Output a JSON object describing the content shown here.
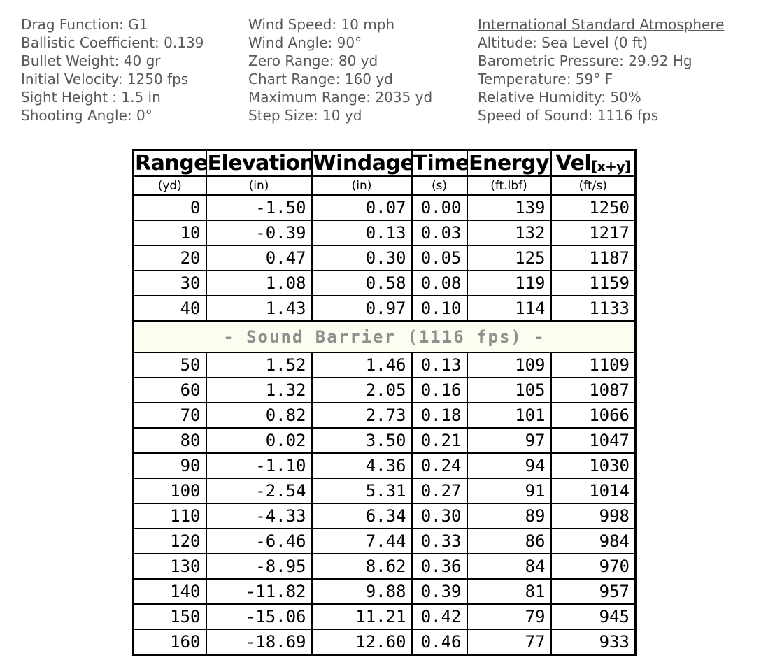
{
  "info": {
    "ballistics": [
      "Drag Function: G1",
      "Ballistic Coefficient: 0.139",
      "Bullet Weight: 40 gr",
      "Initial Velocity: 1250 fps",
      "Sight Height : 1.5 in",
      "Shooting Angle: 0°"
    ],
    "conditions": [
      "Wind Speed: 10 mph",
      "Wind Angle: 90°",
      "Zero Range: 80 yd",
      "Chart Range: 160 yd",
      "Maximum Range: 2035 yd",
      "Step Size: 10 yd"
    ],
    "atmosphere": {
      "title": "International Standard Atmosphere",
      "lines": [
        "Altitude: Sea Level (0 ft)",
        "Barometric Pressure: 29.92 Hg",
        "Temperature: 59° F",
        "Relative Humidity: 50%",
        "Speed of Sound: 1116 fps"
      ]
    }
  },
  "table": {
    "headers": [
      "Range",
      "Elevation",
      "Windage",
      "Time",
      "Energy"
    ],
    "vel_header": {
      "main": "Vel",
      "sub": "[x+y]"
    },
    "units": [
      "(yd)",
      "(in)",
      "(in)",
      "(s)",
      "(ft.lbf)",
      "(ft/s)"
    ],
    "column_keys": [
      "range",
      "elevation",
      "windage",
      "time",
      "energy",
      "velocity"
    ],
    "rows_before_barrier": [
      [
        "0",
        "-1.50",
        "0.07",
        "0.00",
        "139",
        "1250"
      ],
      [
        "10",
        "-0.39",
        "0.13",
        "0.03",
        "132",
        "1217"
      ],
      [
        "20",
        "0.47",
        "0.30",
        "0.05",
        "125",
        "1187"
      ],
      [
        "30",
        "1.08",
        "0.58",
        "0.08",
        "119",
        "1159"
      ],
      [
        "40",
        "1.43",
        "0.97",
        "0.10",
        "114",
        "1133"
      ]
    ],
    "barrier_label": "- Sound Barrier (1116 fps) -",
    "rows_after_barrier": [
      [
        "50",
        "1.52",
        "1.46",
        "0.13",
        "109",
        "1109"
      ],
      [
        "60",
        "1.32",
        "2.05",
        "0.16",
        "105",
        "1087"
      ],
      [
        "70",
        "0.82",
        "2.73",
        "0.18",
        "101",
        "1066"
      ],
      [
        "80",
        "0.02",
        "3.50",
        "0.21",
        "97",
        "1047"
      ],
      [
        "90",
        "-1.10",
        "4.36",
        "0.24",
        "94",
        "1030"
      ],
      [
        "100",
        "-2.54",
        "5.31",
        "0.27",
        "91",
        "1014"
      ],
      [
        "110",
        "-4.33",
        "6.34",
        "0.30",
        "89",
        "998"
      ],
      [
        "120",
        "-6.46",
        "7.44",
        "0.33",
        "86",
        "984"
      ],
      [
        "130",
        "-8.95",
        "8.62",
        "0.36",
        "84",
        "970"
      ],
      [
        "140",
        "-11.82",
        "9.88",
        "0.39",
        "81",
        "957"
      ],
      [
        "150",
        "-15.06",
        "11.21",
        "0.42",
        "79",
        "945"
      ],
      [
        "160",
        "-18.69",
        "12.60",
        "0.46",
        "77",
        "933"
      ]
    ]
  },
  "colors": {
    "info_text": "#58585a",
    "table_text": "#000000",
    "barrier_border": "#a9cb72",
    "barrier_background": "#fcfdf0",
    "barrier_text": "#8f8f8f"
  }
}
